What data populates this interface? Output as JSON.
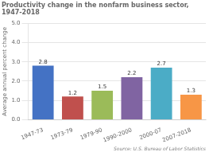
{
  "chart_data": {
    "type": "bar",
    "title": "Productivity change in the nonfarm business sector,  1947-2018",
    "categories": [
      "1947-73",
      "1973-79",
      "1979-90",
      "1990-2000",
      "2000-07",
      "2007-2018"
    ],
    "values": [
      2.8,
      1.2,
      1.5,
      2.2,
      2.7,
      1.3
    ],
    "colors": [
      "#4472C4",
      "#C0504D",
      "#9BBB59",
      "#8064A2",
      "#4BACC6",
      "#F79646"
    ],
    "ylabel": "Average annual percent change",
    "ylim": [
      0,
      5.0
    ],
    "yticks": [
      {
        "value": 0.0,
        "label": "0.0"
      },
      {
        "value": 1.0,
        "label": "1.0"
      },
      {
        "value": 2.0,
        "label": "2.0"
      },
      {
        "value": 3.0,
        "label": "3.0"
      },
      {
        "value": 4.0,
        "label": "4.0"
      },
      {
        "value": 5.0,
        "label": "5.0"
      }
    ],
    "annotations": [
      "Source: U.S. Bureau of Labor Statistics"
    ],
    "data_labels": true,
    "grid": true
  }
}
